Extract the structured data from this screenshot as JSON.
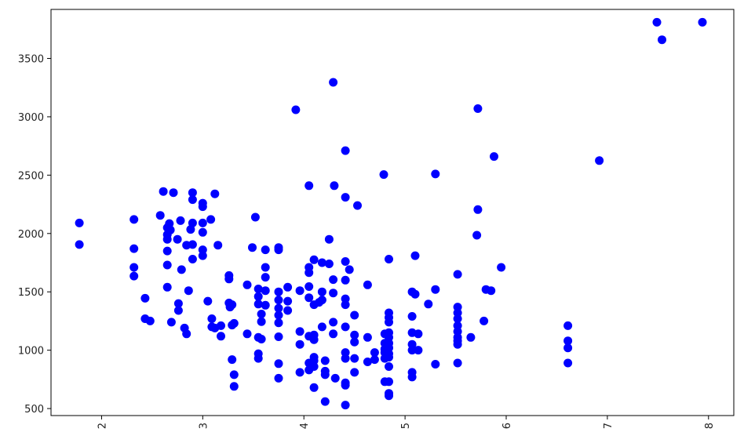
{
  "chart_data": {
    "type": "scatter",
    "title": "",
    "xlabel": "",
    "ylabel": "",
    "xlim": [
      1.5,
      8.25
    ],
    "ylim": [
      440,
      3920
    ],
    "x_ticks": [
      2,
      3,
      4,
      5,
      6,
      7,
      8
    ],
    "x_tick_labels": [
      "2",
      "3",
      "4",
      "5",
      "6",
      "7",
      "8"
    ],
    "y_ticks": [
      500,
      1000,
      1500,
      2000,
      2500,
      3000,
      3500
    ],
    "y_tick_labels": [
      "500",
      "1000",
      "1500",
      "2000",
      "2500",
      "3000",
      "3500"
    ],
    "x_tick_rotation_deg": 90,
    "grid": false,
    "legend": "none",
    "marker_color": "#0000ff",
    "series": [
      {
        "points": [
          [
            1.78,
            2090
          ],
          [
            1.78,
            1905
          ],
          [
            2.32,
            2120
          ],
          [
            2.32,
            1870
          ],
          [
            2.32,
            1710
          ],
          [
            2.32,
            1635
          ],
          [
            2.43,
            1445
          ],
          [
            2.43,
            1270
          ],
          [
            2.48,
            1250
          ],
          [
            2.58,
            2155
          ],
          [
            2.61,
            2360
          ],
          [
            2.65,
            2050
          ],
          [
            2.65,
            1990
          ],
          [
            2.65,
            1950
          ],
          [
            2.65,
            1850
          ],
          [
            2.65,
            1730
          ],
          [
            2.65,
            1540
          ],
          [
            2.67,
            2085
          ],
          [
            2.68,
            2030
          ],
          [
            2.69,
            1240
          ],
          [
            2.71,
            2350
          ],
          [
            2.75,
            1950
          ],
          [
            2.76,
            1400
          ],
          [
            2.76,
            1340
          ],
          [
            2.78,
            2110
          ],
          [
            2.79,
            1690
          ],
          [
            2.82,
            1190
          ],
          [
            2.84,
            1140
          ],
          [
            2.84,
            1900
          ],
          [
            2.86,
            1510
          ],
          [
            2.88,
            2035
          ],
          [
            2.9,
            2350
          ],
          [
            2.9,
            2290
          ],
          [
            2.9,
            2090
          ],
          [
            2.9,
            1905
          ],
          [
            2.9,
            1780
          ],
          [
            3.0,
            2260
          ],
          [
            3.0,
            2230
          ],
          [
            3.0,
            2090
          ],
          [
            3.0,
            2010
          ],
          [
            3.0,
            1860
          ],
          [
            3.0,
            1810
          ],
          [
            3.05,
            1420
          ],
          [
            3.08,
            2120
          ],
          [
            3.09,
            1270
          ],
          [
            3.09,
            1200
          ],
          [
            3.12,
            2340
          ],
          [
            3.12,
            1190
          ],
          [
            3.15,
            1900
          ],
          [
            3.18,
            1210
          ],
          [
            3.18,
            1120
          ],
          [
            3.26,
            1640
          ],
          [
            3.26,
            1610
          ],
          [
            3.26,
            1405
          ],
          [
            3.27,
            1370
          ],
          [
            3.29,
            1390
          ],
          [
            3.29,
            1215
          ],
          [
            3.29,
            920
          ],
          [
            3.31,
            1230
          ],
          [
            3.31,
            790
          ],
          [
            3.31,
            690
          ],
          [
            3.44,
            1560
          ],
          [
            3.44,
            1140
          ],
          [
            3.49,
            1880
          ],
          [
            3.52,
            2140
          ],
          [
            3.55,
            1525
          ],
          [
            3.55,
            1460
          ],
          [
            3.55,
            1395
          ],
          [
            3.55,
            1110
          ],
          [
            3.55,
            970
          ],
          [
            3.55,
            930
          ],
          [
            3.58,
            1310
          ],
          [
            3.58,
            1245
          ],
          [
            3.58,
            1095
          ],
          [
            3.62,
            1860
          ],
          [
            3.62,
            1710
          ],
          [
            3.62,
            1625
          ],
          [
            3.62,
            1510
          ],
          [
            3.62,
            1385
          ],
          [
            3.75,
            1880
          ],
          [
            3.75,
            1860
          ],
          [
            3.75,
            1500
          ],
          [
            3.75,
            1430
          ],
          [
            3.75,
            1360
          ],
          [
            3.75,
            1300
          ],
          [
            3.75,
            1235
          ],
          [
            3.75,
            1115
          ],
          [
            3.75,
            885
          ],
          [
            3.75,
            760
          ],
          [
            3.84,
            1540
          ],
          [
            3.84,
            1420
          ],
          [
            3.84,
            1340
          ],
          [
            3.92,
            3060
          ],
          [
            3.96,
            1510
          ],
          [
            3.96,
            1160
          ],
          [
            3.96,
            1050
          ],
          [
            3.96,
            810
          ],
          [
            4.05,
            2410
          ],
          [
            4.05,
            1710
          ],
          [
            4.05,
            1665
          ],
          [
            4.05,
            1545
          ],
          [
            4.05,
            1450
          ],
          [
            4.05,
            1120
          ],
          [
            4.05,
            890
          ],
          [
            4.05,
            830
          ],
          [
            4.1,
            1775
          ],
          [
            4.1,
            1390
          ],
          [
            4.1,
            1130
          ],
          [
            4.1,
            1090
          ],
          [
            4.1,
            940
          ],
          [
            4.1,
            910
          ],
          [
            4.1,
            860
          ],
          [
            4.1,
            680
          ],
          [
            4.15,
            1410
          ],
          [
            4.18,
            1750
          ],
          [
            4.18,
            1500
          ],
          [
            4.18,
            1430
          ],
          [
            4.18,
            1200
          ],
          [
            4.21,
            910
          ],
          [
            4.21,
            820
          ],
          [
            4.21,
            790
          ],
          [
            4.21,
            560
          ],
          [
            4.25,
            1950
          ],
          [
            4.25,
            1740
          ],
          [
            4.29,
            3295
          ],
          [
            4.29,
            1605
          ],
          [
            4.29,
            1490
          ],
          [
            4.29,
            1240
          ],
          [
            4.29,
            1140
          ],
          [
            4.3,
            2410
          ],
          [
            4.31,
            760
          ],
          [
            4.41,
            2710
          ],
          [
            4.41,
            2310
          ],
          [
            4.41,
            1760
          ],
          [
            4.41,
            1600
          ],
          [
            4.41,
            1440
          ],
          [
            4.41,
            1390
          ],
          [
            4.41,
            1200
          ],
          [
            4.41,
            980
          ],
          [
            4.41,
            930
          ],
          [
            4.41,
            720
          ],
          [
            4.41,
            700
          ],
          [
            4.41,
            530
          ],
          [
            4.45,
            1690
          ],
          [
            4.5,
            1300
          ],
          [
            4.5,
            1130
          ],
          [
            4.5,
            1070
          ],
          [
            4.5,
            930
          ],
          [
            4.5,
            810
          ],
          [
            4.53,
            2240
          ],
          [
            4.63,
            1560
          ],
          [
            4.63,
            1110
          ],
          [
            4.63,
            900
          ],
          [
            4.7,
            980
          ],
          [
            4.7,
            920
          ],
          [
            4.79,
            2505
          ],
          [
            4.8,
            1140
          ],
          [
            4.8,
            1060
          ],
          [
            4.8,
            1010
          ],
          [
            4.8,
            980
          ],
          [
            4.8,
            930
          ],
          [
            4.8,
            730
          ],
          [
            4.84,
            1780
          ],
          [
            4.84,
            1320
          ],
          [
            4.84,
            1280
          ],
          [
            4.84,
            1240
          ],
          [
            4.84,
            1150
          ],
          [
            4.84,
            1110
          ],
          [
            4.84,
            1060
          ],
          [
            4.84,
            1020
          ],
          [
            4.84,
            970
          ],
          [
            4.84,
            940
          ],
          [
            4.84,
            860
          ],
          [
            4.84,
            730
          ],
          [
            4.84,
            630
          ],
          [
            4.84,
            610
          ],
          [
            5.07,
            1500
          ],
          [
            5.07,
            1290
          ],
          [
            5.07,
            1150
          ],
          [
            5.07,
            1050
          ],
          [
            5.07,
            1000
          ],
          [
            5.07,
            810
          ],
          [
            5.07,
            770
          ],
          [
            5.1,
            1810
          ],
          [
            5.1,
            1480
          ],
          [
            5.13,
            1140
          ],
          [
            5.13,
            1000
          ],
          [
            5.23,
            1395
          ],
          [
            5.3,
            2510
          ],
          [
            5.3,
            1520
          ],
          [
            5.3,
            880
          ],
          [
            5.52,
            1650
          ],
          [
            5.52,
            1370
          ],
          [
            5.52,
            1320
          ],
          [
            5.52,
            1270
          ],
          [
            5.52,
            1210
          ],
          [
            5.52,
            1160
          ],
          [
            5.52,
            1110
          ],
          [
            5.52,
            1080
          ],
          [
            5.52,
            1050
          ],
          [
            5.52,
            890
          ],
          [
            5.65,
            1110
          ],
          [
            5.72,
            3070
          ],
          [
            5.72,
            2205
          ],
          [
            5.71,
            1985
          ],
          [
            5.78,
            1250
          ],
          [
            5.8,
            1520
          ],
          [
            5.85,
            1510
          ],
          [
            5.88,
            2660
          ],
          [
            5.95,
            1710
          ],
          [
            6.61,
            1210
          ],
          [
            6.61,
            1080
          ],
          [
            6.61,
            1020
          ],
          [
            6.61,
            890
          ],
          [
            6.92,
            2625
          ],
          [
            7.49,
            3810
          ],
          [
            7.54,
            3660
          ],
          [
            7.94,
            3810
          ]
        ]
      }
    ]
  }
}
